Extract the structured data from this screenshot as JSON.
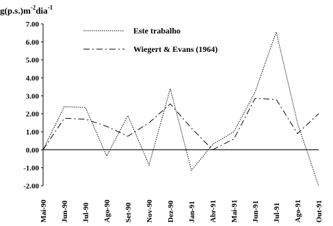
{
  "chart_data": {
    "type": "line",
    "ylabel_parts": [
      "g(p.s.)m",
      "-2",
      "dia",
      "-1"
    ],
    "categories": [
      "Mai-90",
      "Jun-90",
      "Jul-90",
      "Ago-90",
      "Set-90",
      "Nov-90",
      "Dez-90",
      "Jan-91",
      "Abr-91",
      "Mai-91",
      "Jun-91",
      "Jul-91",
      "Ago-91",
      "Out-91"
    ],
    "series": [
      {
        "name": "Este trabalho",
        "color": "#000000",
        "dash": "1.5 1.5",
        "values": [
          0,
          2.4,
          2.35,
          -0.35,
          1.9,
          -0.85,
          3.4,
          -1.15,
          0.3,
          1.0,
          3.2,
          6.55,
          1.5,
          -2.0
        ]
      },
      {
        "name": "Wiegert & Evans (1964)",
        "color": "#000000",
        "dash": "9 4 2 4",
        "values": [
          0,
          1.75,
          1.7,
          1.3,
          0.75,
          1.5,
          2.55,
          1.2,
          0.0,
          0.6,
          2.85,
          2.8,
          0.9,
          2.0
        ]
      }
    ],
    "ylim": [
      -2,
      7
    ],
    "yticks": [
      {
        "value": -2,
        "label": "-2.00"
      },
      {
        "value": -1,
        "label": "-1.00"
      },
      {
        "value": 0,
        "label": "0.00"
      },
      {
        "value": 1,
        "label": "1.00"
      },
      {
        "value": 2,
        "label": "2.00"
      },
      {
        "value": 3,
        "label": "3.00"
      },
      {
        "value": 4,
        "label": "4.00"
      },
      {
        "value": 5,
        "label": "5.00"
      },
      {
        "value": 6,
        "label": "6.00"
      },
      {
        "value": 7,
        "label": "7.00"
      }
    ]
  }
}
